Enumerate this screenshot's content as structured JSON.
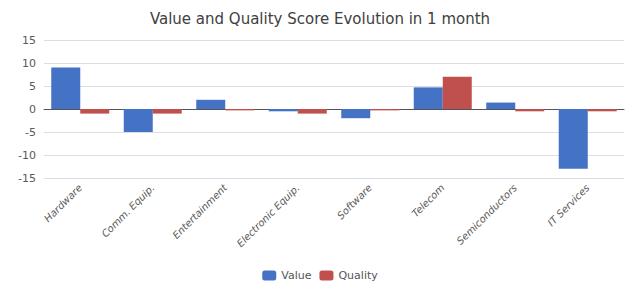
{
  "chart_data": {
    "type": "bar",
    "title": "Value and Quality Score Evolution in 1 month",
    "categories": [
      "Hardware",
      "Comm. Equip.",
      "Entertainment",
      "Electronic Equip.",
      "Software",
      "Telecom",
      "Semiconductors",
      "IT Services"
    ],
    "series": [
      {
        "name": "Value",
        "color": "#4472C4",
        "values": [
          9,
          -5,
          2,
          -0.5,
          -2,
          4.7,
          1.4,
          -13
        ]
      },
      {
        "name": "Quality",
        "color": "#C0504D",
        "values": [
          -1,
          -1,
          -0.3,
          -1,
          -0.3,
          7,
          -0.5,
          -0.5
        ]
      }
    ],
    "ylim": [
      -15,
      15
    ],
    "yticks": [
      -15,
      -10,
      -5,
      0,
      5,
      10,
      15
    ],
    "grid": true,
    "legend": "bottom"
  }
}
